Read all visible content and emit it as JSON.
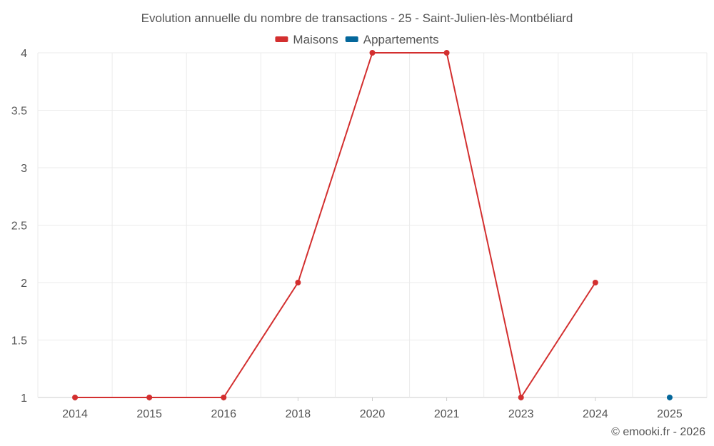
{
  "chart_data": {
    "type": "line",
    "title": "Evolution annuelle du nombre de transactions - 25 - Saint-Julien-lès-Montbéliard",
    "categories": [
      "2014",
      "2015",
      "2016",
      "2018",
      "2020",
      "2021",
      "2023",
      "2024",
      "2025"
    ],
    "ylim": [
      1,
      4
    ],
    "yticks": [
      1,
      1.5,
      2,
      2.5,
      3,
      3.5,
      4
    ],
    "grid": true,
    "legend_position": "top-center",
    "series": [
      {
        "name": "Maisons",
        "color": "#d32f2f",
        "values": [
          1,
          1,
          1,
          2,
          4,
          4,
          1,
          2,
          null
        ]
      },
      {
        "name": "Appartements",
        "color": "#04679b",
        "values": [
          null,
          null,
          null,
          null,
          null,
          null,
          null,
          null,
          1
        ]
      }
    ]
  },
  "footer": {
    "credit": "© emooki.fr - 2026"
  }
}
